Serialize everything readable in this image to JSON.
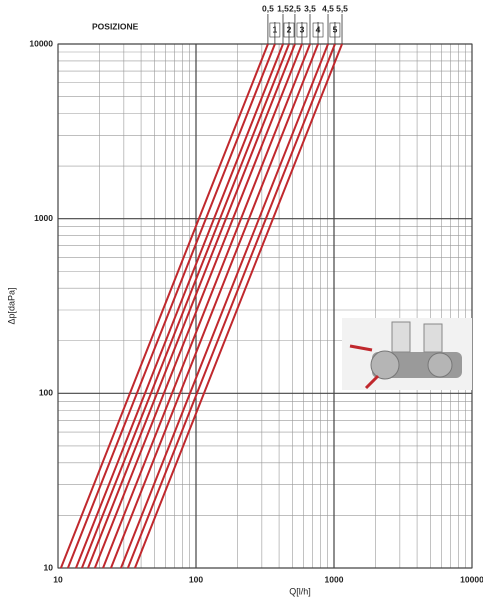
{
  "chart_data": {
    "type": "line",
    "title": "POSIZIONE",
    "x_label": "Q[l/h]",
    "y_label": "Δp[daPa]",
    "log_x": true,
    "log_y": true,
    "grid": true,
    "xlim": [
      10,
      10000
    ],
    "ylim": [
      10,
      10000
    ],
    "xticks": [
      10,
      100,
      1000,
      10000
    ],
    "yticks": [
      10,
      100,
      1000,
      10000
    ],
    "series": [
      {
        "name": "0,5",
        "color": "#c0282d",
        "x": [
          10.5,
          332
        ],
        "values": [
          10,
          10000
        ]
      },
      {
        "name": "1",
        "color": "#c0282d",
        "x": [
          11.8,
          373
        ],
        "values": [
          10,
          10000
        ]
      },
      {
        "name": "1,5",
        "color": "#c0282d",
        "x": [
          13.5,
          427
        ],
        "values": [
          10,
          10000
        ]
      },
      {
        "name": "2",
        "color": "#c0282d",
        "x": [
          14.9,
          472
        ],
        "values": [
          10,
          10000
        ]
      },
      {
        "name": "2,5",
        "color": "#c0282d",
        "x": [
          16.5,
          521
        ],
        "values": [
          10,
          10000
        ]
      },
      {
        "name": "3",
        "color": "#c0282d",
        "x": [
          18.5,
          586
        ],
        "values": [
          10,
          10000
        ]
      },
      {
        "name": "3,5",
        "color": "#c0282d",
        "x": [
          21.2,
          670
        ],
        "values": [
          10,
          10000
        ]
      },
      {
        "name": "4",
        "color": "#c0282d",
        "x": [
          24.2,
          766
        ],
        "values": [
          10,
          10000
        ]
      },
      {
        "name": "4,5",
        "color": "#c0282d",
        "x": [
          28.6,
          905
        ],
        "values": [
          10,
          10000
        ]
      },
      {
        "name": "5",
        "color": "#c0282d",
        "x": [
          32.1,
          1016
        ],
        "values": [
          10,
          10000
        ]
      },
      {
        "name": "5,5",
        "color": "#c0282d",
        "x": [
          36.1,
          1143
        ],
        "values": [
          10,
          10000
        ]
      }
    ]
  }
}
